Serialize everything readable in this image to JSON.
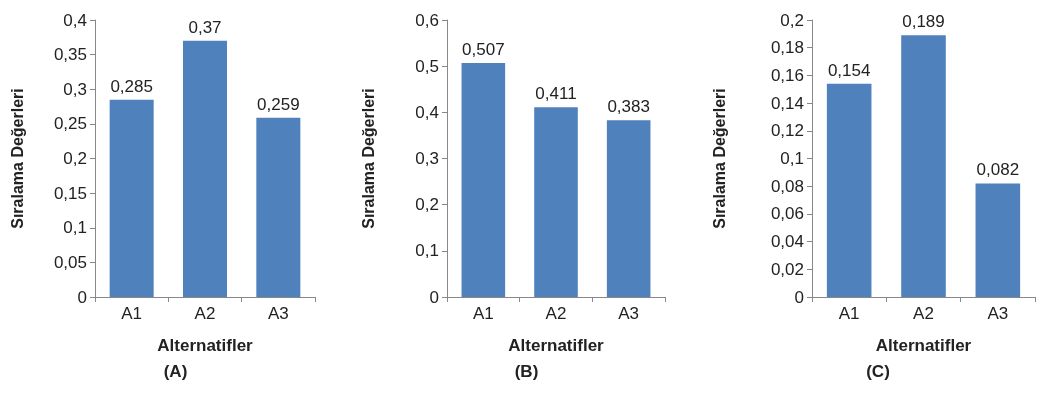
{
  "chart_data": [
    {
      "type": "bar",
      "title": "(A)",
      "xlabel": "Alternatifler",
      "ylabel": "Sıralama Değerleri",
      "categories": [
        "A1",
        "A2",
        "A3"
      ],
      "values": [
        0.285,
        0.37,
        0.259
      ],
      "value_labels": [
        "0,285",
        "0,37",
        "0,259"
      ],
      "color": "#4f81bd",
      "ylim": [
        0,
        0.4
      ],
      "yticks": [
        {
          "value": 0,
          "label": "0"
        },
        {
          "value": 0.05,
          "label": "0,05"
        },
        {
          "value": 0.1,
          "label": "0,1"
        },
        {
          "value": 0.15,
          "label": "0,15"
        },
        {
          "value": 0.2,
          "label": "0,2"
        },
        {
          "value": 0.25,
          "label": "0,25"
        },
        {
          "value": 0.3,
          "label": "0,3"
        },
        {
          "value": 0.35,
          "label": "0,35"
        },
        {
          "value": 0.4,
          "label": "0,4"
        }
      ],
      "grid": false
    },
    {
      "type": "bar",
      "title": "(B)",
      "xlabel": "Alternatifler",
      "ylabel": "Sıralama Değerleri",
      "categories": [
        "A1",
        "A2",
        "A3"
      ],
      "values": [
        0.507,
        0.411,
        0.383
      ],
      "value_labels": [
        "0,507",
        "0,411",
        "0,383"
      ],
      "color": "#4f81bd",
      "ylim": [
        0,
        0.6
      ],
      "yticks": [
        {
          "value": 0,
          "label": "0"
        },
        {
          "value": 0.1,
          "label": "0,1"
        },
        {
          "value": 0.2,
          "label": "0,2"
        },
        {
          "value": 0.3,
          "label": "0,3"
        },
        {
          "value": 0.4,
          "label": "0,4"
        },
        {
          "value": 0.5,
          "label": "0,5"
        },
        {
          "value": 0.6,
          "label": "0,6"
        }
      ],
      "grid": false
    },
    {
      "type": "bar",
      "title": "(C)",
      "xlabel": "Alternatifler",
      "ylabel": "Sıralama Değerleri",
      "categories": [
        "A1",
        "A2",
        "A3"
      ],
      "values": [
        0.154,
        0.189,
        0.082
      ],
      "value_labels": [
        "0,154",
        "0,189",
        "0,082"
      ],
      "color": "#4f81bd",
      "ylim": [
        0,
        0.2
      ],
      "yticks": [
        {
          "value": 0,
          "label": "0"
        },
        {
          "value": 0.02,
          "label": "0,02"
        },
        {
          "value": 0.04,
          "label": "0,04"
        },
        {
          "value": 0.06,
          "label": "0,06"
        },
        {
          "value": 0.08,
          "label": "0,08"
        },
        {
          "value": 0.1,
          "label": "0,1"
        },
        {
          "value": 0.12,
          "label": "0,12"
        },
        {
          "value": 0.14,
          "label": "0,14"
        },
        {
          "value": 0.16,
          "label": "0,16"
        },
        {
          "value": 0.18,
          "label": "0,18"
        },
        {
          "value": 0.2,
          "label": "0,2"
        }
      ],
      "grid": false
    }
  ]
}
